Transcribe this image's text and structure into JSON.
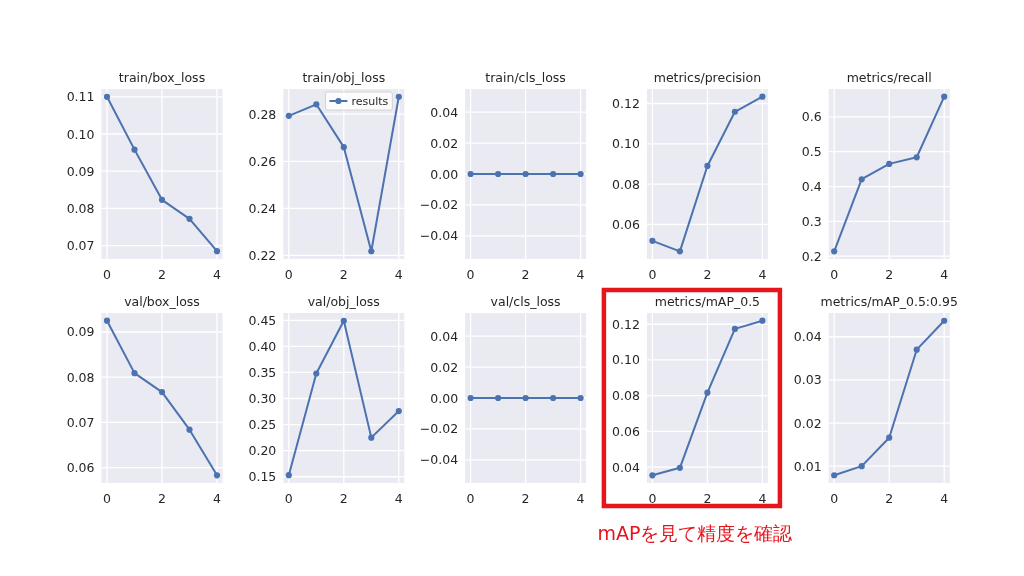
{
  "chart_data": [
    {
      "type": "line",
      "title": "train/box_loss",
      "x": [
        0,
        1,
        2,
        3,
        4
      ],
      "xlim": [
        -0.2,
        4.2
      ],
      "xticks": [
        0,
        2,
        4
      ],
      "ylim": [
        0.0664,
        0.1121
      ],
      "yticks": [
        0.07,
        0.08,
        0.09,
        {
          "value": 0.1,
          "label": "0.10"
        },
        0.11
      ],
      "series": [
        {
          "color": "#4c72b0",
          "values": [
            0.11,
            0.0958,
            0.0823,
            0.0772,
            0.0685
          ]
        }
      ],
      "marker": "circle",
      "grid": true
    },
    {
      "type": "line",
      "title": "train/obj_loss",
      "x": [
        0,
        1,
        2,
        3,
        4
      ],
      "xlim": [
        -0.2,
        4.2
      ],
      "xticks": [
        0,
        2,
        4
      ],
      "ylim": [
        0.2185,
        0.2907
      ],
      "yticks": [
        0.22,
        0.24,
        0.26,
        0.28
      ],
      "series": [
        {
          "name": "results",
          "color": "#4c72b0",
          "values": [
            0.2793,
            0.2842,
            0.266,
            0.2218,
            0.2874
          ]
        }
      ],
      "marker": "circle",
      "grid": true,
      "legend": "top right"
    },
    {
      "type": "line",
      "title": "train/cls_loss",
      "x": [
        0,
        1,
        2,
        3,
        4
      ],
      "xlim": [
        -0.2,
        4.2
      ],
      "xticks": [
        0,
        2,
        4
      ],
      "ylim": [
        -0.055,
        0.055
      ],
      "yticks": [
        {
          "value": -0.04,
          "label": "−0.04"
        },
        {
          "value": -0.02,
          "label": "−0.02"
        },
        {
          "value": 0,
          "label": "0.00"
        },
        0.02,
        0.04
      ],
      "series": [
        {
          "color": "#4c72b0",
          "values": [
            0,
            0,
            0,
            0,
            0
          ]
        }
      ],
      "marker": "circle",
      "grid": true
    },
    {
      "type": "line",
      "title": "metrics/precision",
      "x": [
        0,
        1,
        2,
        3,
        4
      ],
      "xlim": [
        -0.2,
        4.2
      ],
      "xticks": [
        0,
        2,
        4
      ],
      "ylim": [
        0.0428,
        0.1272
      ],
      "yticks": [
        0.06,
        0.08,
        {
          "value": 0.1,
          "label": "0.10"
        },
        0.12
      ],
      "series": [
        {
          "color": "#4c72b0",
          "values": [
            0.0518,
            0.0466,
            0.089,
            0.1159,
            0.1234
          ]
        }
      ],
      "marker": "circle",
      "grid": true
    },
    {
      "type": "line",
      "title": "metrics/recall",
      "x": [
        0,
        1,
        2,
        3,
        4
      ],
      "xlim": [
        -0.2,
        4.2
      ],
      "xticks": [
        0,
        2,
        4
      ],
      "ylim": [
        0.192,
        0.68
      ],
      "yticks": [
        0.2,
        0.3,
        0.4,
        0.5,
        0.6
      ],
      "series": [
        {
          "color": "#4c72b0",
          "values": [
            0.214,
            0.421,
            0.465,
            0.484,
            0.658
          ]
        }
      ],
      "marker": "circle",
      "grid": true
    },
    {
      "type": "line",
      "title": "val/box_loss",
      "x": [
        0,
        1,
        2,
        3,
        4
      ],
      "xlim": [
        -0.2,
        4.2
      ],
      "xticks": [
        0,
        2,
        4
      ],
      "ylim": [
        0.0566,
        0.0942
      ],
      "yticks": [
        0.06,
        0.07,
        0.08,
        0.09
      ],
      "series": [
        {
          "color": "#4c72b0",
          "values": [
            0.0925,
            0.0809,
            0.0767,
            0.0684,
            0.0583
          ]
        }
      ],
      "marker": "circle",
      "grid": true
    },
    {
      "type": "line",
      "title": "val/obj_loss",
      "x": [
        0,
        1,
        2,
        3,
        4
      ],
      "xlim": [
        -0.2,
        4.2
      ],
      "xticks": [
        0,
        2,
        4
      ],
      "ylim": [
        0.138,
        0.464
      ],
      "yticks": [
        0.15,
        {
          "value": 0.2,
          "label": "0.20"
        },
        0.25,
        {
          "value": 0.3,
          "label": "0.30"
        },
        0.35,
        {
          "value": 0.4,
          "label": "0.40"
        },
        0.45
      ],
      "series": [
        {
          "color": "#4c72b0",
          "values": [
            0.153,
            0.348,
            0.449,
            0.225,
            0.276
          ]
        }
      ],
      "marker": "circle",
      "grid": true
    },
    {
      "type": "line",
      "title": "val/cls_loss",
      "x": [
        0,
        1,
        2,
        3,
        4
      ],
      "xlim": [
        -0.2,
        4.2
      ],
      "xticks": [
        0,
        2,
        4
      ],
      "ylim": [
        -0.055,
        0.055
      ],
      "yticks": [
        {
          "value": -0.04,
          "label": "−0.04"
        },
        {
          "value": -0.02,
          "label": "−0.02"
        },
        {
          "value": 0,
          "label": "0.00"
        },
        0.02,
        0.04
      ],
      "series": [
        {
          "color": "#4c72b0",
          "values": [
            0,
            0,
            0,
            0,
            0
          ]
        }
      ],
      "marker": "circle",
      "grid": true
    },
    {
      "type": "line",
      "title": "metrics/mAP_0.5",
      "x": [
        0,
        1,
        2,
        3,
        4
      ],
      "xlim": [
        -0.2,
        4.2
      ],
      "xticks": [
        0,
        2,
        4
      ],
      "ylim": [
        0.0311,
        0.1263
      ],
      "yticks": [
        0.04,
        0.06,
        0.08,
        {
          "value": 0.1,
          "label": "0.10"
        },
        0.12
      ],
      "series": [
        {
          "color": "#4c72b0",
          "values": [
            0.0354,
            0.0396,
            0.0817,
            0.1174,
            0.122
          ]
        }
      ],
      "marker": "circle",
      "grid": true,
      "annotations": [
        "mAPを見て精度を確認"
      ]
    },
    {
      "type": "line",
      "title": "metrics/mAP_0.5:0.95",
      "x": [
        0,
        1,
        2,
        3,
        4
      ],
      "xlim": [
        -0.2,
        4.2
      ],
      "xticks": [
        0,
        2,
        4
      ],
      "ylim": [
        0.0061,
        0.0455
      ],
      "yticks": [
        0.01,
        0.02,
        0.03,
        0.04
      ],
      "series": [
        {
          "color": "#4c72b0",
          "values": [
            0.0079,
            0.01,
            0.0166,
            0.037,
            0.0437
          ]
        }
      ],
      "marker": "circle",
      "grid": true
    }
  ]
}
